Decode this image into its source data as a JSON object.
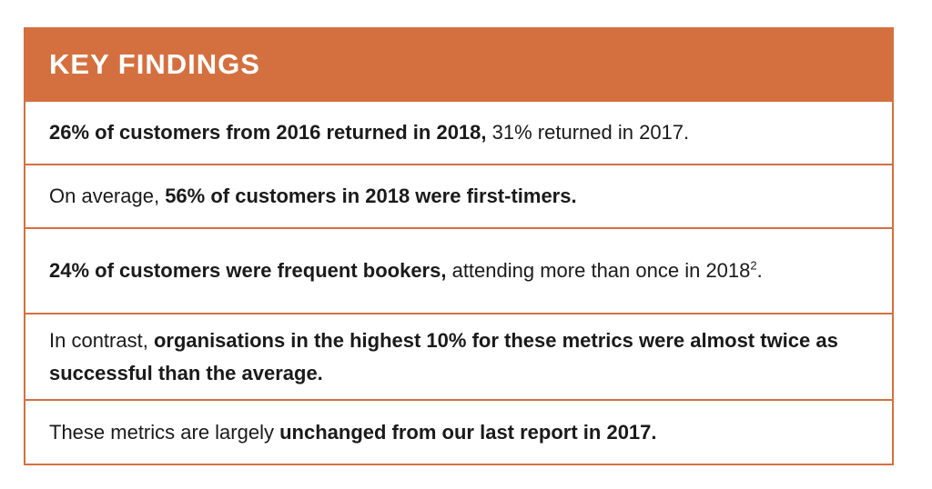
{
  "title": "KEY FINDINGS",
  "findings": [
    {
      "bold": "26% of customers from 2016 returned in 2018,",
      "normal": " 31% returned in 2017."
    },
    {
      "normal_before": "On average, ",
      "bold": "56% of customers in 2018 were first-timers."
    },
    {
      "bold": "24% of customers were frequent bookers,",
      "normal": " attending more than once in 2018",
      "footnote": "2",
      "end": "."
    },
    {
      "normal_before": "In contrast, ",
      "bold": "organisations in the highest 10% for these metrics were almost twice as successful than the average."
    },
    {
      "normal_before": "These metrics are largely ",
      "bold": "unchanged from our last report in 2017."
    }
  ],
  "colors": {
    "accent": "#d4703f",
    "text": "#1a1a1a",
    "header_text": "#ffffff"
  }
}
